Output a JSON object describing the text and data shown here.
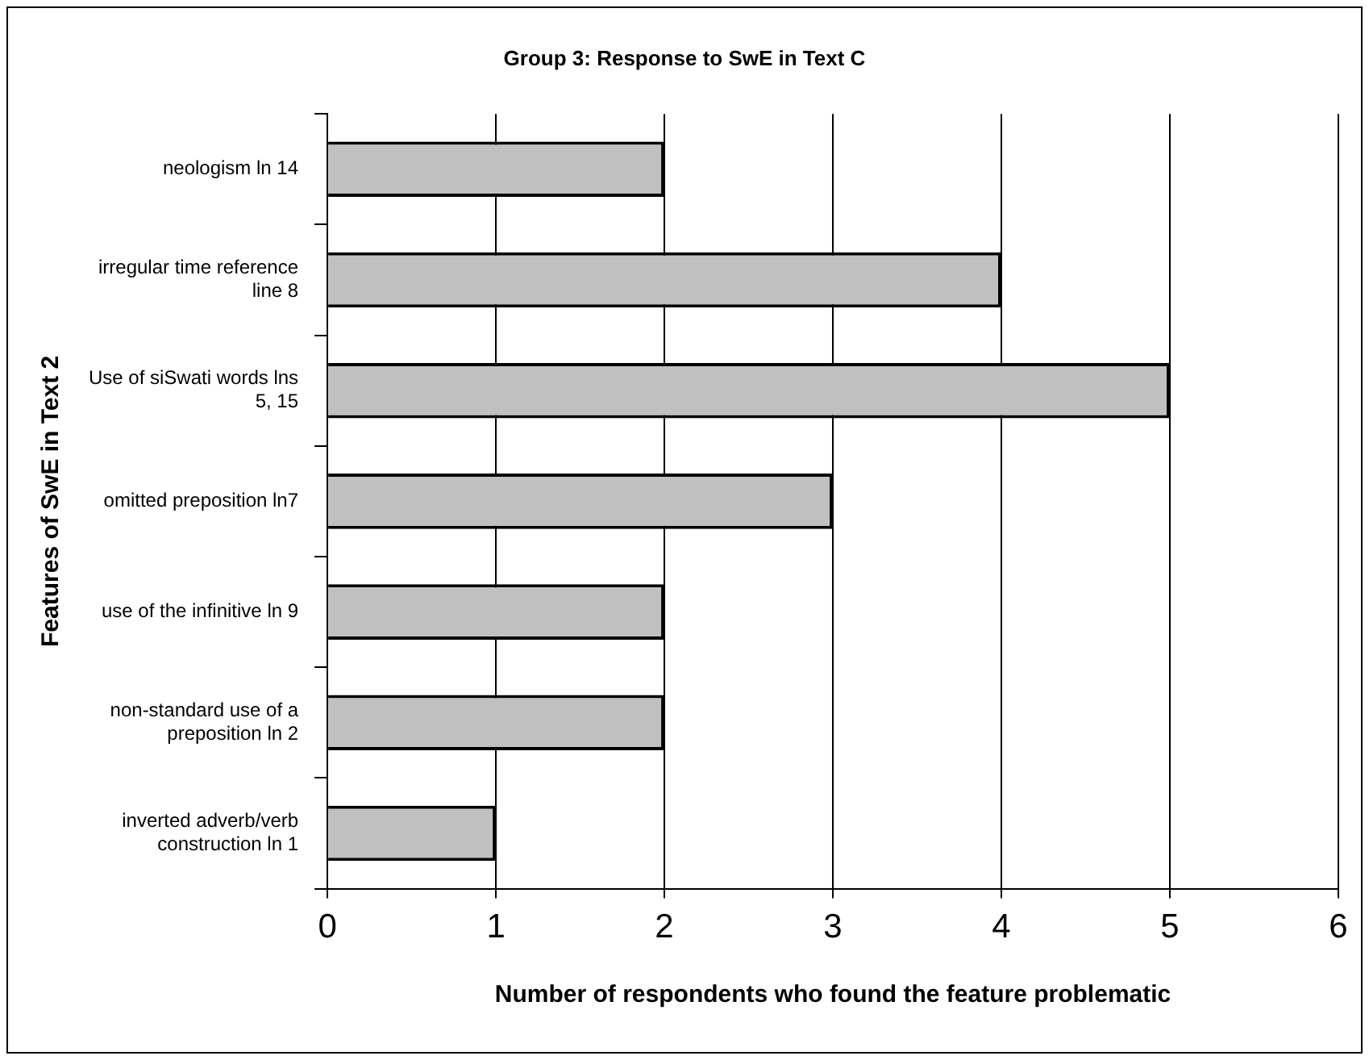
{
  "chart_data": {
    "type": "bar",
    "orientation": "horizontal",
    "title": "Group 3: Response to SwE in Text C",
    "xlabel": "Number of respondents who found the feature problematic",
    "ylabel": "Features of SwE in Text 2",
    "categories": [
      "neologism ln 14",
      "irregular time reference line 8",
      "Use of siSwati words lns 5, 15",
      "omitted preposition ln7",
      "use of the infinitive ln 9",
      "non-standard use of a preposition ln 2",
      "inverted adverb/verb construction ln 1"
    ],
    "values": [
      2,
      4,
      5,
      3,
      2,
      2,
      1
    ],
    "color": "#c0c0c0",
    "xlim": [
      0,
      6
    ],
    "xticks": [
      0,
      1,
      2,
      3,
      4,
      5,
      6
    ],
    "grid": "x",
    "legend": false
  }
}
